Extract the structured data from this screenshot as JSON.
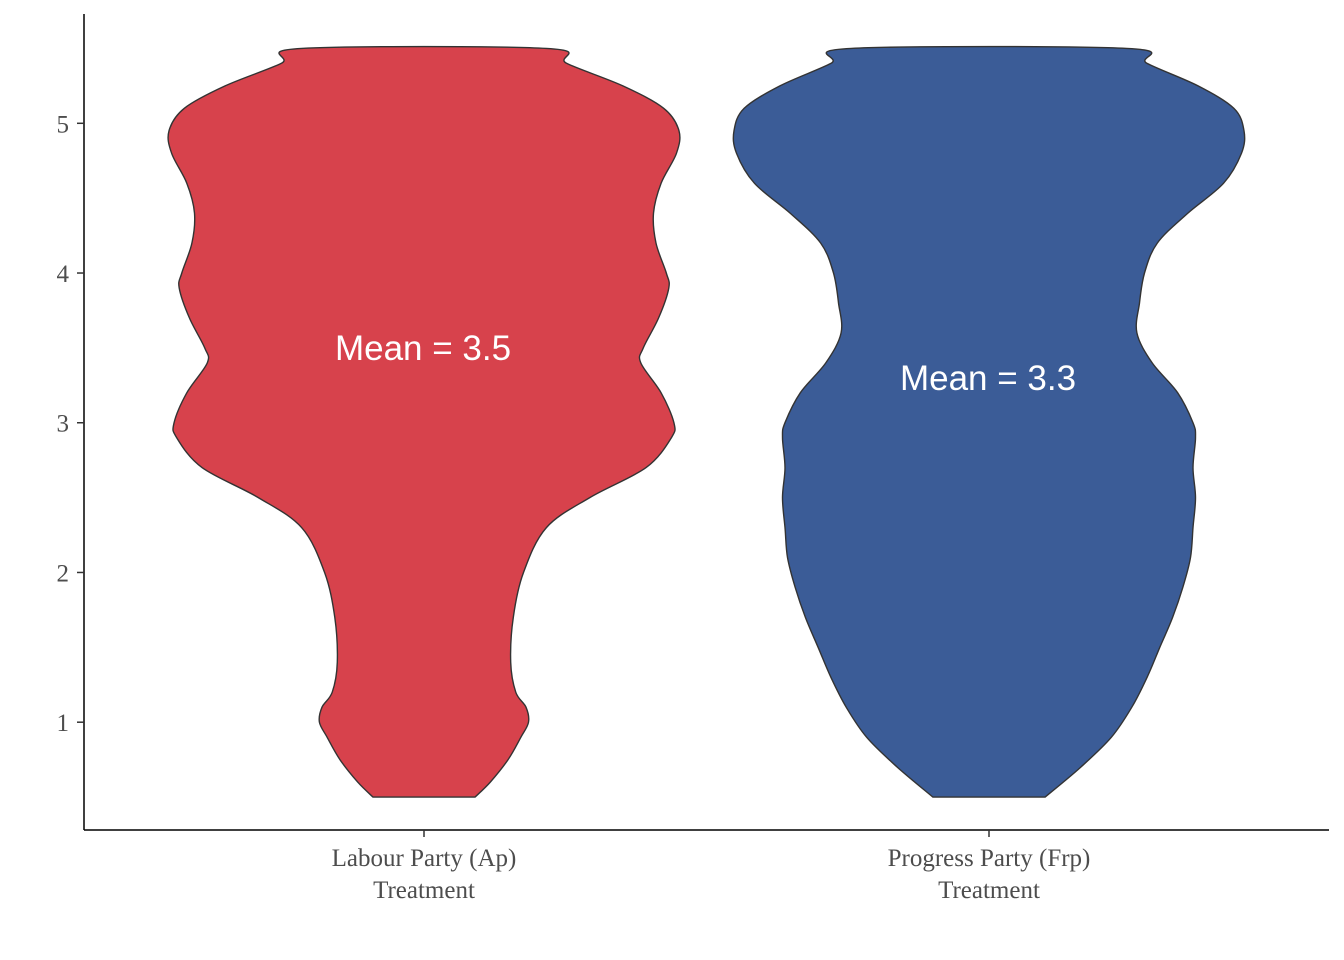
{
  "chart_data": {
    "type": "violin",
    "title": "",
    "xlabel": "",
    "ylabel": "",
    "ylim": [
      0.28,
      5.73
    ],
    "yticks": [
      1,
      2,
      3,
      4,
      5
    ],
    "grid": false,
    "legend": "none",
    "categories": [
      {
        "line1": "Labour Party (Ap)",
        "line2": "Treatment",
        "mean_label": "Mean = 3.5",
        "mean": 3.5,
        "color": "#D7424C",
        "density": [
          [
            0.5,
            0.2
          ],
          [
            0.6,
            0.26
          ],
          [
            0.75,
            0.33
          ],
          [
            0.9,
            0.38
          ],
          [
            1.0,
            0.41
          ],
          [
            1.1,
            0.4
          ],
          [
            1.2,
            0.36
          ],
          [
            1.4,
            0.34
          ],
          [
            1.7,
            0.35
          ],
          [
            2.0,
            0.39
          ],
          [
            2.3,
            0.48
          ],
          [
            2.5,
            0.65
          ],
          [
            2.7,
            0.87
          ],
          [
            2.9,
            0.97
          ],
          [
            3.0,
            0.98
          ],
          [
            3.2,
            0.93
          ],
          [
            3.4,
            0.85
          ],
          [
            3.5,
            0.86
          ],
          [
            3.7,
            0.92
          ],
          [
            3.9,
            0.96
          ],
          [
            4.0,
            0.95
          ],
          [
            4.2,
            0.91
          ],
          [
            4.4,
            0.9
          ],
          [
            4.6,
            0.93
          ],
          [
            4.8,
            0.99
          ],
          [
            4.95,
            1.0
          ],
          [
            5.1,
            0.94
          ],
          [
            5.25,
            0.78
          ],
          [
            5.4,
            0.56
          ],
          [
            5.5,
            0.48
          ]
        ]
      },
      {
        "line1": "Progress Party (Frp)",
        "line2": "Treatment",
        "mean_label": "Mean = 3.3",
        "mean": 3.3,
        "color": "#3B5C97",
        "density": [
          [
            0.5,
            0.22
          ],
          [
            0.7,
            0.36
          ],
          [
            0.9,
            0.48
          ],
          [
            1.1,
            0.56
          ],
          [
            1.3,
            0.62
          ],
          [
            1.5,
            0.67
          ],
          [
            1.7,
            0.72
          ],
          [
            1.9,
            0.76
          ],
          [
            2.1,
            0.79
          ],
          [
            2.3,
            0.8
          ],
          [
            2.5,
            0.81
          ],
          [
            2.7,
            0.8
          ],
          [
            2.9,
            0.81
          ],
          [
            3.0,
            0.8
          ],
          [
            3.2,
            0.74
          ],
          [
            3.4,
            0.64
          ],
          [
            3.6,
            0.58
          ],
          [
            3.8,
            0.59
          ],
          [
            4.0,
            0.61
          ],
          [
            4.2,
            0.66
          ],
          [
            4.4,
            0.78
          ],
          [
            4.6,
            0.92
          ],
          [
            4.8,
            0.99
          ],
          [
            4.95,
            1.0
          ],
          [
            5.1,
            0.96
          ],
          [
            5.25,
            0.82
          ],
          [
            5.4,
            0.62
          ],
          [
            5.5,
            0.54
          ]
        ]
      }
    ]
  }
}
